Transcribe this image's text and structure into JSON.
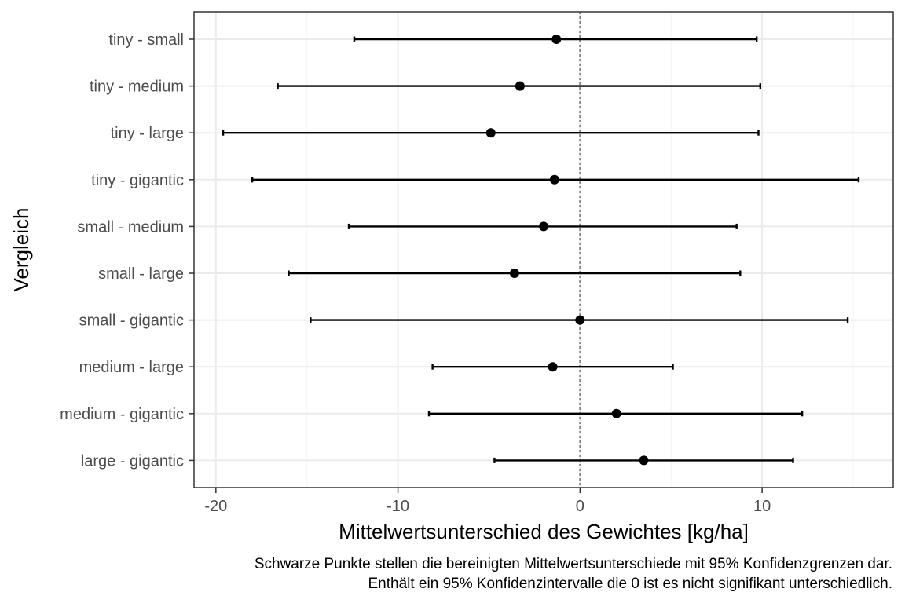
{
  "chart_data": {
    "type": "scatter",
    "orientation": "horizontal",
    "title": "",
    "xlabel": "Mittelwertsunterschied des Gewichtes [kg/ha]",
    "ylabel": "Vergleich",
    "xlim": [
      -21.2,
      17.2
    ],
    "x_ticks": [
      -20,
      -10,
      0,
      10
    ],
    "x_tick_labels": [
      "-20",
      "-10",
      "0",
      "10"
    ],
    "reference_line_x": 0,
    "grid": true,
    "categories": [
      "tiny - small",
      "tiny - medium",
      "tiny - large",
      "tiny - gigantic",
      "small - medium",
      "small - large",
      "small - gigantic",
      "medium - large",
      "medium - gigantic",
      "large - gigantic"
    ],
    "estimates": [
      -1.3,
      -3.3,
      -4.9,
      -1.4,
      -2.0,
      -3.6,
      0.0,
      -1.5,
      2.0,
      3.5
    ],
    "lower": [
      -12.4,
      -16.6,
      -19.6,
      -18.0,
      -12.7,
      -16.0,
      -14.8,
      -8.1,
      -8.3,
      -4.7
    ],
    "upper": [
      9.7,
      9.9,
      9.8,
      15.3,
      8.6,
      8.8,
      14.7,
      5.1,
      12.2,
      11.7
    ],
    "caption_lines": [
      "Schwarze Punkte stellen die bereinigten Mittelwertsunterschiede mit 95% Konfidenzgrenzen dar.",
      "Enthält ein 95% Konfidenzintervalle die 0 ist es nicht signifikant unterschiedlich."
    ],
    "colors": {
      "points": "#000000",
      "grid_major": "#ebebeb",
      "grid_minor": "#f5f5f5",
      "panel_border": "#333333",
      "reference_line": "#808080"
    }
  }
}
